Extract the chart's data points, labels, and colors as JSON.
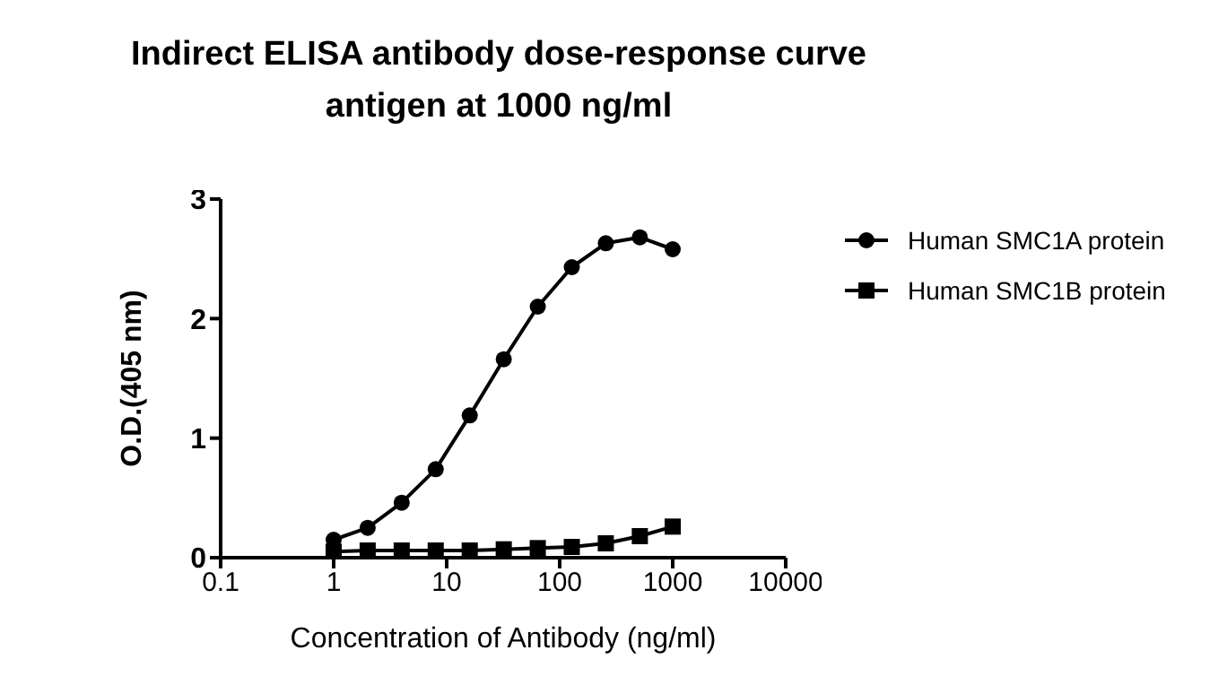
{
  "chart_data": {
    "type": "line",
    "title": "Indirect ELISA antibody dose-response curve",
    "subtitle": "antigen at 1000 ng/ml",
    "xlabel": "Concentration of Antibody (ng/ml)",
    "ylabel": "O.D.(405 nm)",
    "log": "x",
    "x": [
      1,
      2,
      4,
      8,
      16,
      32,
      64,
      128,
      256,
      512,
      1000
    ],
    "xlim": [
      0.1,
      10000
    ],
    "xticks": [
      0.1,
      1,
      10,
      100,
      1000,
      10000
    ],
    "ylim": [
      0,
      3
    ],
    "yticks": [
      0,
      1,
      2,
      3
    ],
    "grid": false,
    "legend": "top right",
    "series": [
      {
        "name": "Human SMC1A protein",
        "color": "#000000",
        "marker": "circle",
        "values": [
          0.15,
          0.25,
          0.46,
          0.74,
          1.19,
          1.66,
          2.1,
          2.43,
          2.63,
          2.68,
          2.58
        ]
      },
      {
        "name": "Human SMC1B protein",
        "color": "#000000",
        "marker": "square",
        "values": [
          0.05,
          0.06,
          0.06,
          0.06,
          0.06,
          0.07,
          0.08,
          0.09,
          0.12,
          0.18,
          0.26
        ]
      }
    ]
  }
}
